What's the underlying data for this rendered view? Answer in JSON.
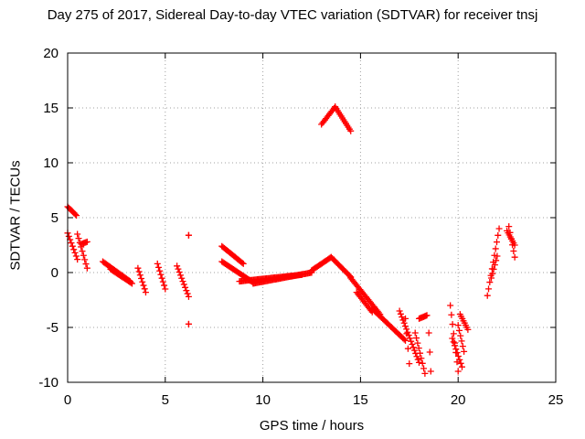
{
  "chart_data": {
    "type": "scatter",
    "title": "Day 275 of 2017, Sidereal Day-to-day VTEC variation (SDTVAR) for receiver tnsj",
    "xlabel": "GPS time / hours",
    "ylabel": "SDTVAR / TECUs",
    "xlim": [
      0,
      25
    ],
    "ylim": [
      -10,
      20
    ],
    "xticks": [
      0,
      5,
      10,
      15,
      20,
      25
    ],
    "yticks": [
      -10,
      -5,
      0,
      5,
      10,
      15,
      20
    ],
    "grid": true,
    "marker": "+",
    "color": "#ff0000",
    "series": [
      {
        "name": "tnsj",
        "segments": [
          {
            "x0": 0.0,
            "x1": 0.45,
            "y": [
              6.0,
              5.2
            ]
          },
          {
            "x0": 0.0,
            "x1": 0.5,
            "y": [
              3.6,
              1.2
            ]
          },
          {
            "x0": 0.5,
            "x1": 1.0,
            "y": [
              3.5,
              0.4
            ]
          },
          {
            "x0": 0.7,
            "x1": 1.0,
            "y": [
              2.6,
              2.8
            ]
          },
          {
            "x0": 1.8,
            "x1": 3.2,
            "y": [
              1.0,
              -0.8
            ]
          },
          {
            "x0": 2.2,
            "x1": 3.3,
            "y": [
              0.3,
              -1.0
            ]
          },
          {
            "x0": 3.6,
            "x1": 4.0,
            "y": [
              0.4,
              -1.8
            ]
          },
          {
            "x0": 4.6,
            "x1": 5.0,
            "y": [
              0.8,
              -1.5
            ]
          },
          {
            "x0": 5.6,
            "x1": 6.2,
            "y": [
              0.6,
              -2.2
            ]
          },
          {
            "x0": 6.2,
            "x1": 6.2,
            "y": [
              3.4,
              3.4
            ]
          },
          {
            "x0": 6.2,
            "x1": 6.2,
            "y": [
              -4.7,
              -4.7
            ]
          },
          {
            "x0": 7.9,
            "x1": 9.0,
            "y": [
              2.4,
              0.8
            ]
          },
          {
            "x0": 7.9,
            "x1": 9.5,
            "y": [
              1.0,
              -0.9
            ]
          },
          {
            "x0": 8.8,
            "x1": 12.0,
            "y": [
              -0.8,
              -0.2
            ]
          },
          {
            "x0": 9.5,
            "x1": 12.5,
            "y": [
              -1.0,
              0.0
            ]
          },
          {
            "x0": 12.5,
            "x1": 13.5,
            "y": [
              0.2,
              1.4
            ]
          },
          {
            "x0": 13.5,
            "x1": 14.5,
            "y": [
              1.4,
              -0.4
            ]
          },
          {
            "x0": 13.0,
            "x1": 13.7,
            "y": [
              13.5,
              15.1
            ]
          },
          {
            "x0": 13.7,
            "x1": 14.5,
            "y": [
              15.1,
              12.9
            ]
          },
          {
            "x0": 14.5,
            "x1": 16.0,
            "y": [
              -0.5,
              -3.8
            ]
          },
          {
            "x0": 14.8,
            "x1": 15.6,
            "y": [
              -1.8,
              -3.6
            ]
          },
          {
            "x0": 15.6,
            "x1": 17.3,
            "y": [
              -3.3,
              -6.2
            ]
          },
          {
            "x0": 17.0,
            "x1": 18.0,
            "y": [
              -3.5,
              -8.2
            ]
          },
          {
            "x0": 17.3,
            "x1": 17.5,
            "y": [
              -4.2,
              -8.3
            ]
          },
          {
            "x0": 17.8,
            "x1": 18.3,
            "y": [
              -5.5,
              -9.2
            ]
          },
          {
            "x0": 18.0,
            "x1": 18.4,
            "y": [
              -4.2,
              -3.9
            ]
          },
          {
            "x0": 18.5,
            "x1": 18.6,
            "y": [
              -5.5,
              -9.0
            ]
          },
          {
            "x0": 19.6,
            "x1": 20.0,
            "y": [
              -3.0,
              -9.0
            ]
          },
          {
            "x0": 19.7,
            "x1": 20.2,
            "y": [
              -6.0,
              -8.6
            ]
          },
          {
            "x0": 20.0,
            "x1": 20.3,
            "y": [
              -4.8,
              -7.2
            ]
          },
          {
            "x0": 20.1,
            "x1": 20.5,
            "y": [
              -3.8,
              -5.2
            ]
          },
          {
            "x0": 21.5,
            "x1": 22.1,
            "y": [
              -2.1,
              4.0
            ]
          },
          {
            "x0": 21.7,
            "x1": 22.0,
            "y": [
              -0.5,
              1.5
            ]
          },
          {
            "x0": 22.6,
            "x1": 22.9,
            "y": [
              4.2,
              1.4
            ]
          },
          {
            "x0": 22.5,
            "x1": 22.9,
            "y": [
              3.8,
              2.5
            ]
          }
        ]
      }
    ]
  }
}
